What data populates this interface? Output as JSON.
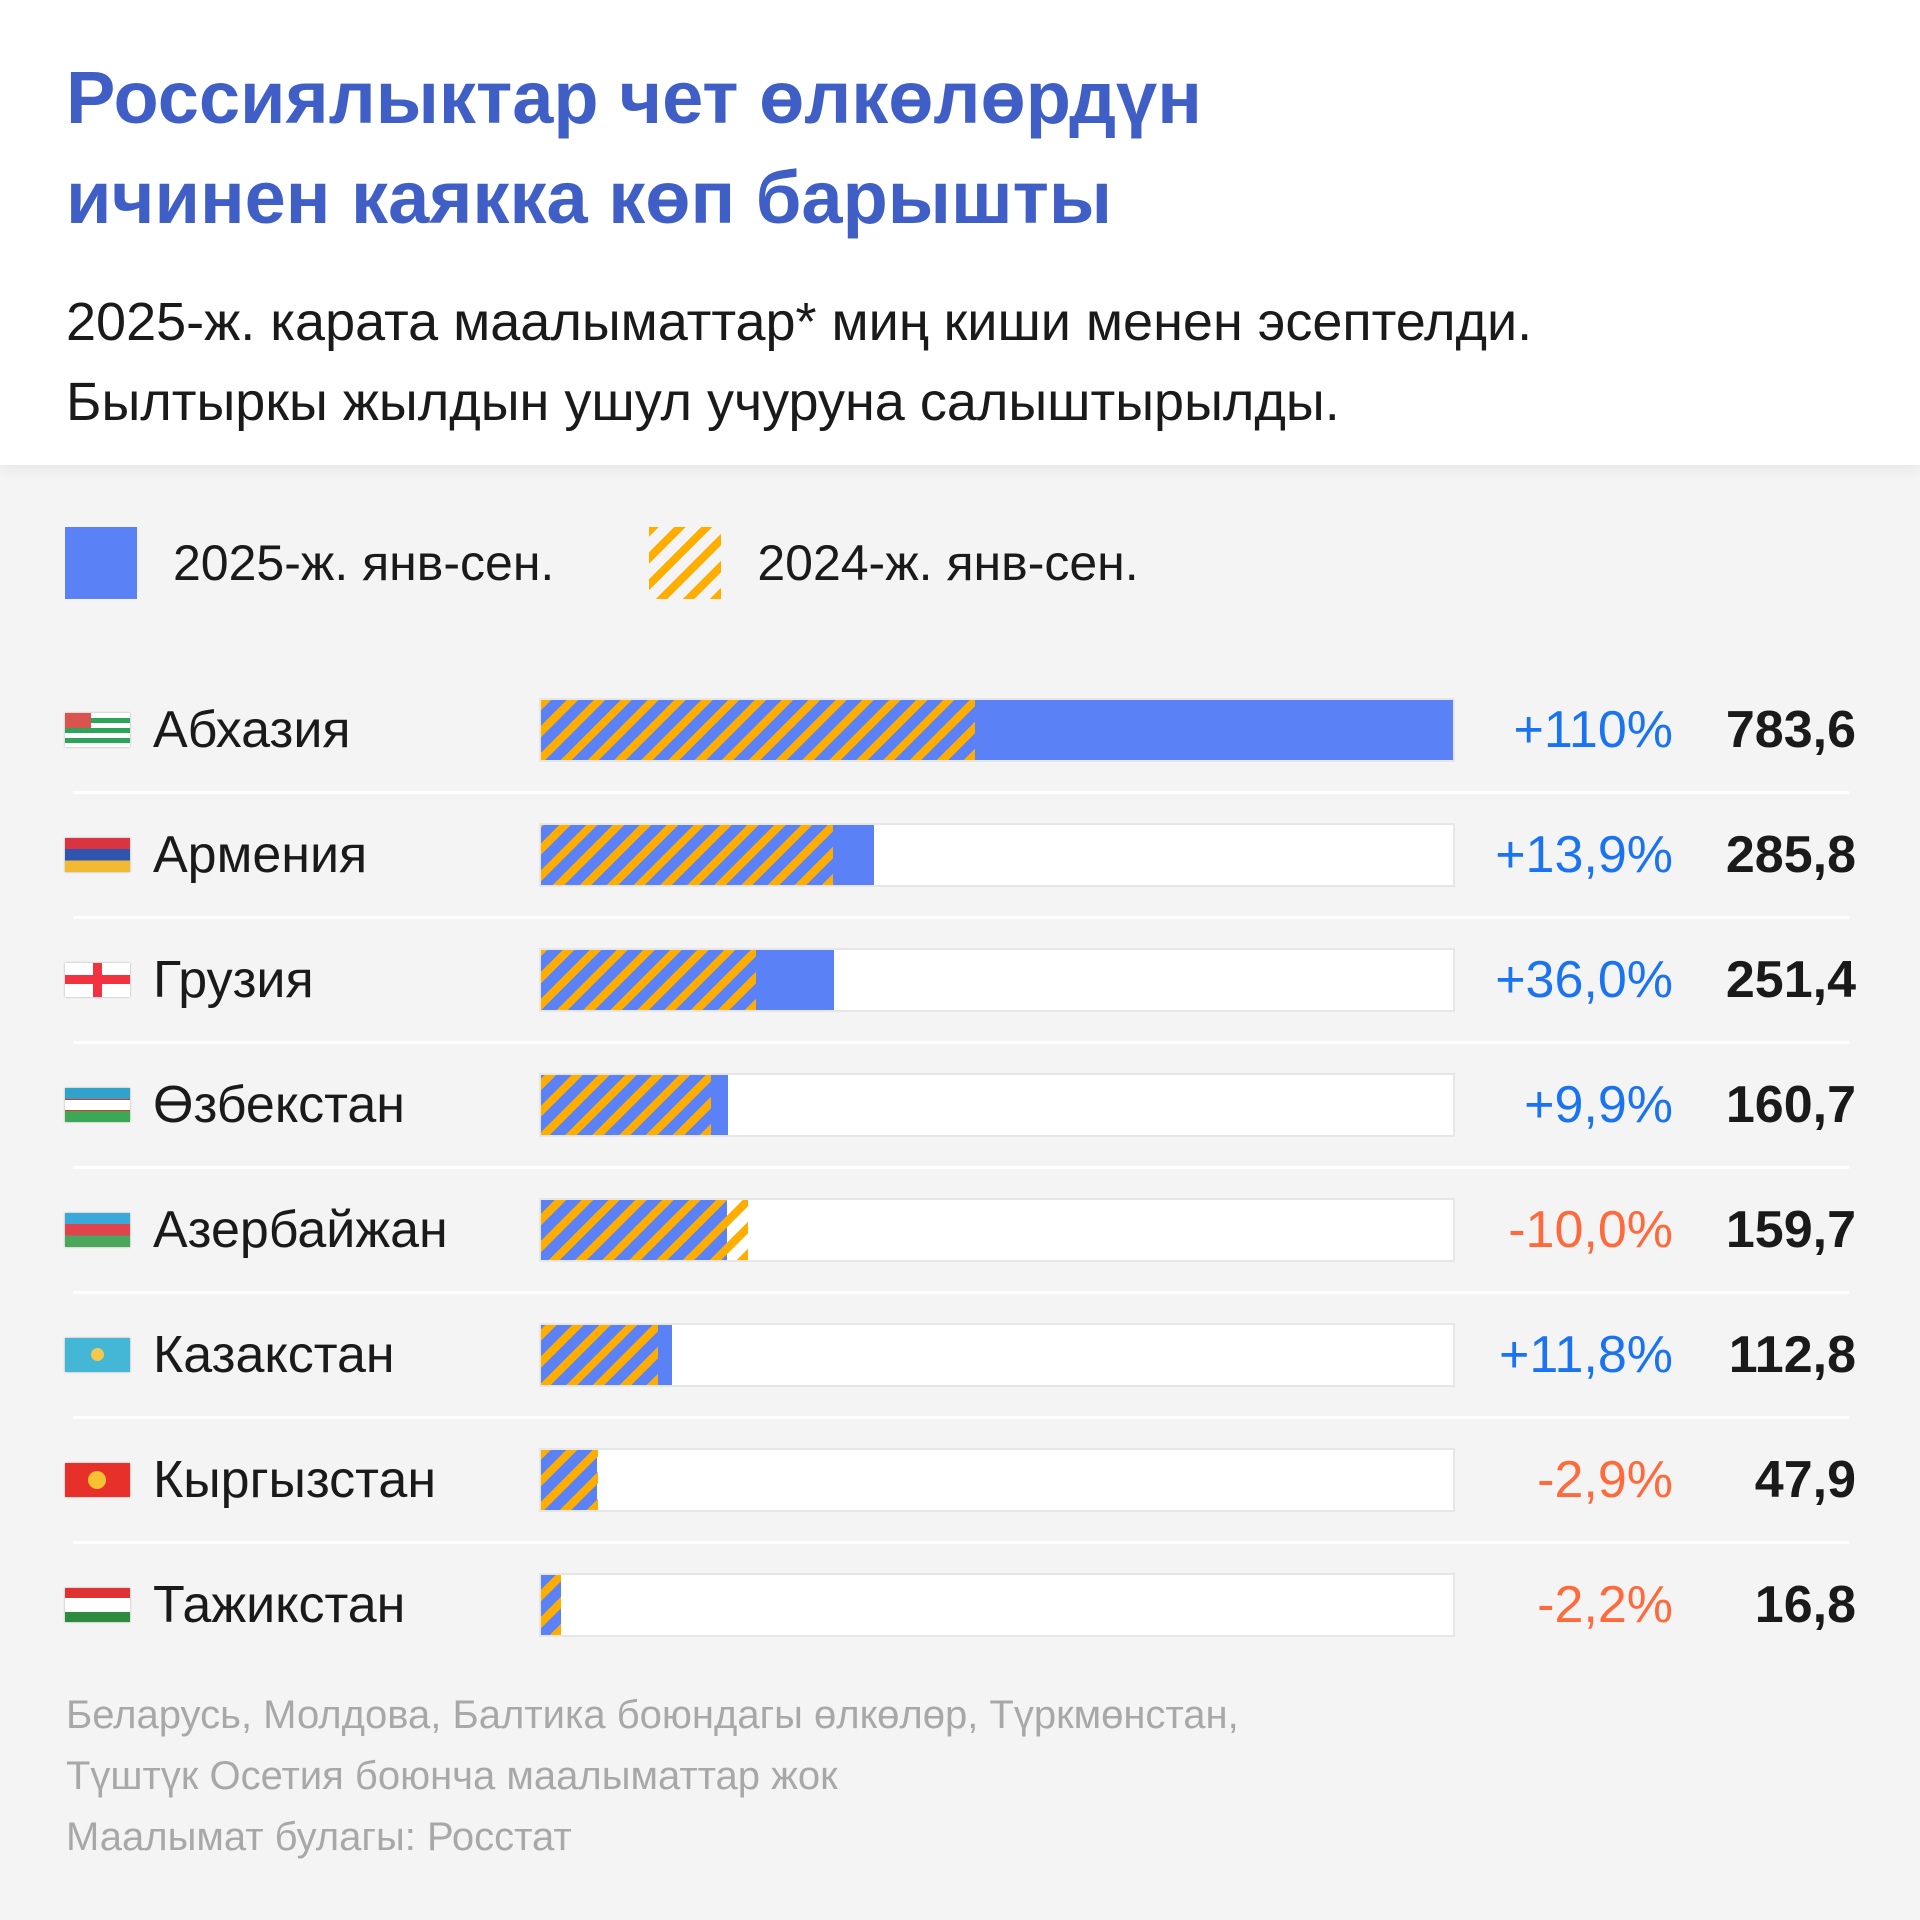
{
  "header": {
    "title_line1": "Россиялыктар чет өлкөлөрдүн",
    "title_line2": "ичинен каякка көп барышты",
    "subtitle_line1": "2025-ж. карата маалыматтар* миң киши менен эсептелди.",
    "subtitle_line2": "Былтыркы жылдын ушул учуруна салыштырылды."
  },
  "legend": [
    {
      "label": "2025-ж. янв-сен.",
      "color": "#5a82f6"
    },
    {
      "label": "2024-ж. янв-сен.",
      "color": "#ffae00"
    }
  ],
  "colors": {
    "positive": "#1a73f0",
    "negative": "#ff6a3d",
    "bar2025": "#5a82f6",
    "hatch2024": "#ffae00"
  },
  "chart_data": {
    "type": "bar",
    "title": "Россиялыктар чет өлкөлөрдүн ичинен каякка көп барышты",
    "unit": "миң киши",
    "series": [
      {
        "name": "2025-ж. янв-сен."
      },
      {
        "name": "2024-ж. янв-сен. (derived from change)"
      }
    ],
    "categories": [
      "Абхазия",
      "Армения",
      "Грузия",
      "Өзбекстан",
      "Азербайжан",
      "Казакстан",
      "Кыргызстан",
      "Тажикстан"
    ],
    "flags": [
      "abkhazia",
      "armenia",
      "georgia",
      "uzbekistan",
      "azerbaijan",
      "kazakhstan",
      "kyrgyzstan",
      "tajikistan"
    ],
    "values": [
      783.6,
      285.8,
      251.4,
      160.7,
      159.7,
      112.8,
      47.9,
      16.8
    ],
    "value_labels": [
      "783,6",
      "285,8",
      "251,4",
      "160,7",
      "159,7",
      "112,8",
      "47,9",
      "16,8"
    ],
    "change_pct": [
      110,
      13.9,
      36.0,
      9.9,
      -10.0,
      11.8,
      -2.9,
      -2.2
    ],
    "change_labels": [
      "+110%",
      "+13,9%",
      "+36,0%",
      "+9,9%",
      "-10,0%",
      "+11,8%",
      "-2,9%",
      "-2,2%"
    ],
    "xlim": [
      0,
      783.6
    ]
  },
  "footer": {
    "line1": "Беларусь, Молдова, Балтика боюндагы өлкөлөр, Түркмөнстан,",
    "line2": "Түштүк Осетия боюнча маалыматтар жок",
    "line3": "Маалымат булагы: Росстат"
  }
}
